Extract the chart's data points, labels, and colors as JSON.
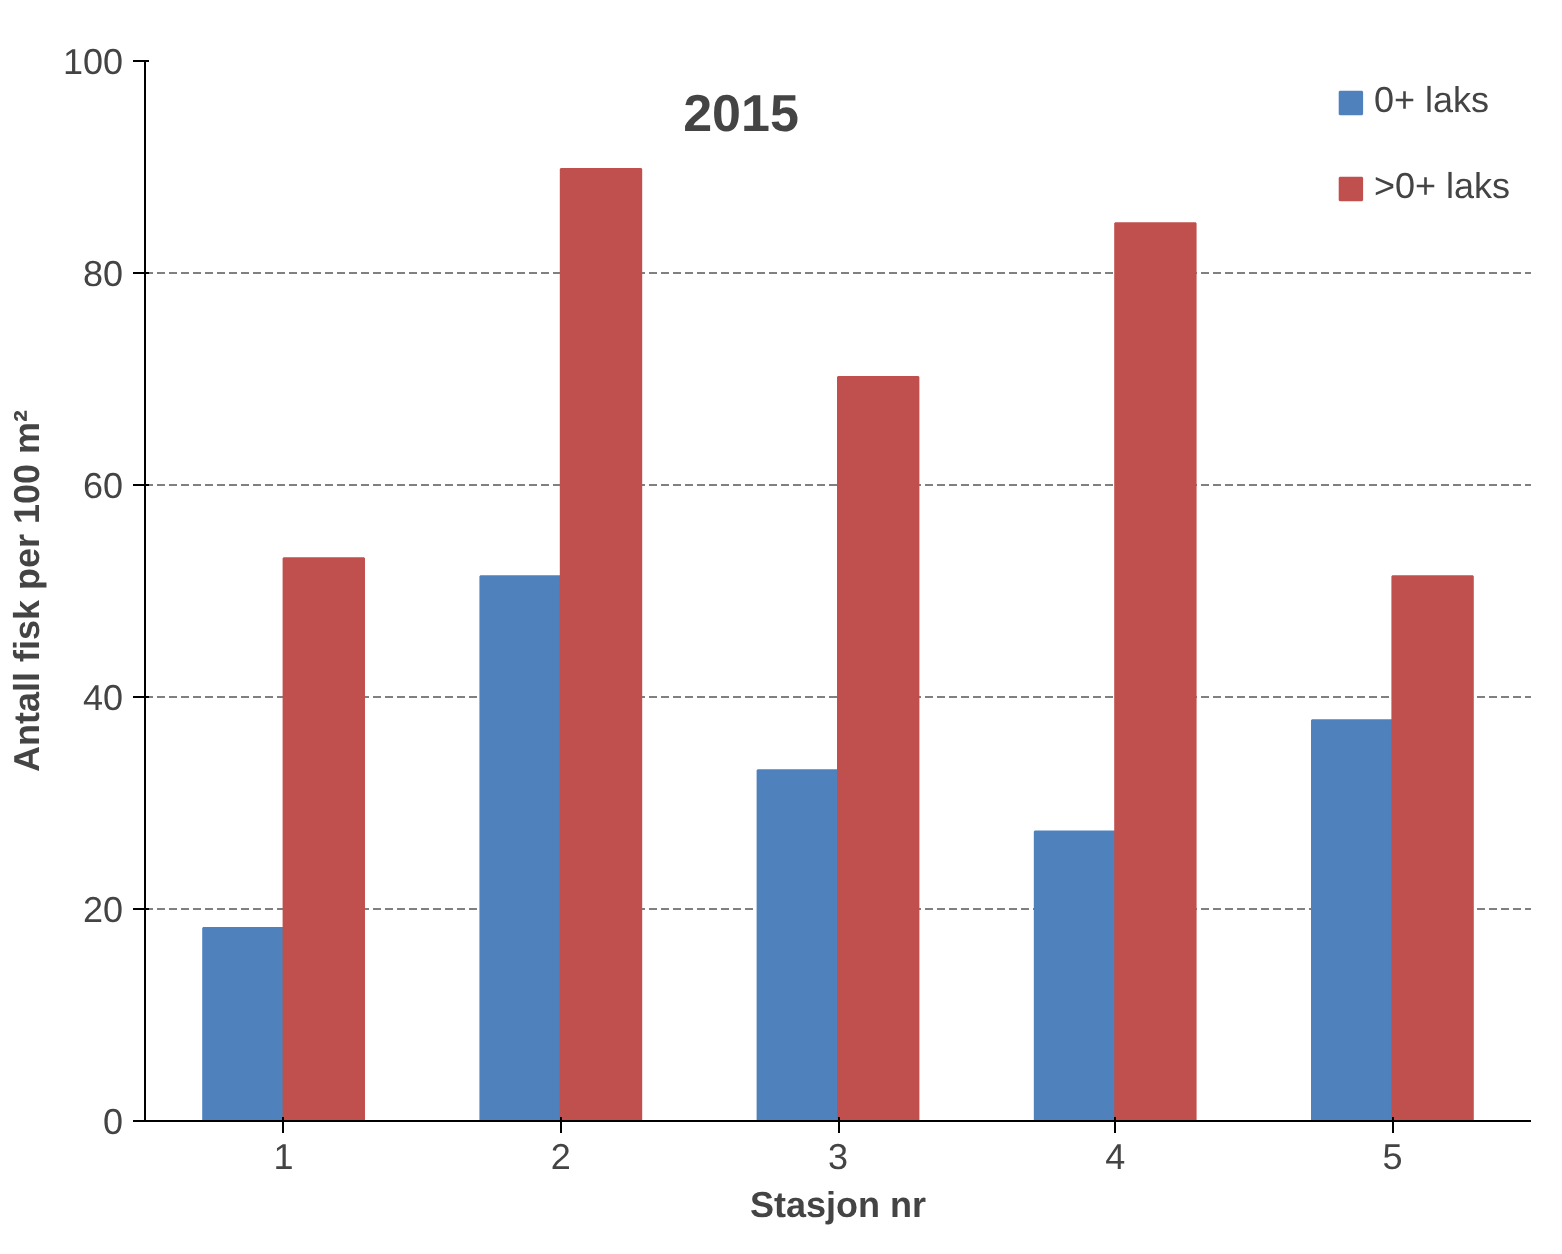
{
  "chart_data": {
    "type": "bar",
    "title": "2015",
    "xlabel": "Stasjon nr",
    "ylabel": "Antall fisk per 100 m²",
    "categories": [
      "1",
      "2",
      "3",
      "4",
      "5"
    ],
    "series": [
      {
        "name": "0+ laks",
        "color": "#4f81bd",
        "values": [
          18.2,
          51.4,
          33.1,
          27.3,
          37.8
        ]
      },
      {
        "name": ">0+ laks",
        "color": "#c0504d",
        "values": [
          53.1,
          89.8,
          70.2,
          84.7,
          51.4
        ]
      }
    ],
    "ylim": [
      0,
      100
    ],
    "yticks": [
      0,
      20,
      40,
      60,
      80,
      100
    ],
    "grid": "y",
    "legend": "top right"
  }
}
